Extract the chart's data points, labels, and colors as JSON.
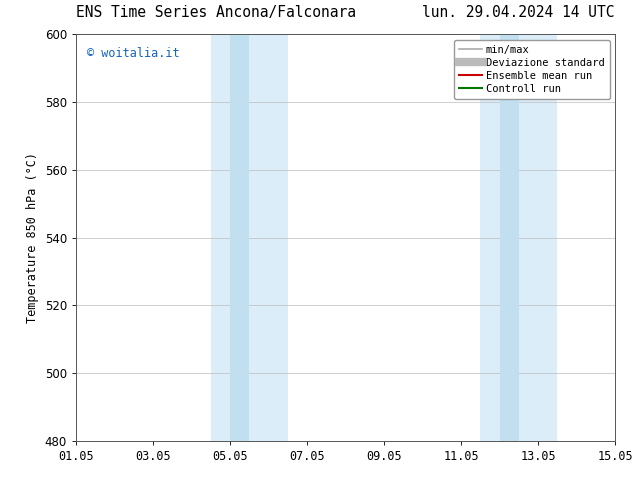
{
  "title_left": "ENS Time Series Ancona/Falconara",
  "title_right": "lun. 29.04.2024 14 UTC",
  "ylabel": "Temperature 850 hPa (°C)",
  "ylim": [
    480,
    600
  ],
  "yticks": [
    480,
    500,
    520,
    540,
    560,
    580,
    600
  ],
  "xlim": [
    0,
    14
  ],
  "xtick_labels": [
    "01.05",
    "03.05",
    "05.05",
    "07.05",
    "09.05",
    "11.05",
    "13.05",
    "15.05"
  ],
  "xtick_positions": [
    0,
    2,
    4,
    6,
    8,
    10,
    12,
    14
  ],
  "shaded_regions_outer": [
    {
      "x_start": 3.5,
      "x_end": 5.5,
      "color": "#daedf8"
    },
    {
      "x_start": 10.5,
      "x_end": 12.5,
      "color": "#daedf8"
    }
  ],
  "shaded_regions_inner": [
    {
      "x_start": 4.0,
      "x_end": 4.5,
      "color": "#c2dff0"
    },
    {
      "x_start": 11.0,
      "x_end": 11.5,
      "color": "#c2dff0"
    }
  ],
  "watermark_text": "© woitalia.it",
  "watermark_color": "#1565c0",
  "legend_entries": [
    {
      "label": "min/max",
      "color": "#aaaaaa",
      "lw": 1.2
    },
    {
      "label": "Deviazione standard",
      "color": "#bbbbbb",
      "lw": 6
    },
    {
      "label": "Ensemble mean run",
      "color": "#cc0000",
      "lw": 1.5
    },
    {
      "label": "Controll run",
      "color": "#007700",
      "lw": 1.5
    }
  ],
  "bg_color": "#ffffff",
  "grid_color": "#bbbbbb",
  "tick_label_fontsize": 8.5,
  "axis_label_fontsize": 8.5,
  "title_fontsize": 10.5
}
